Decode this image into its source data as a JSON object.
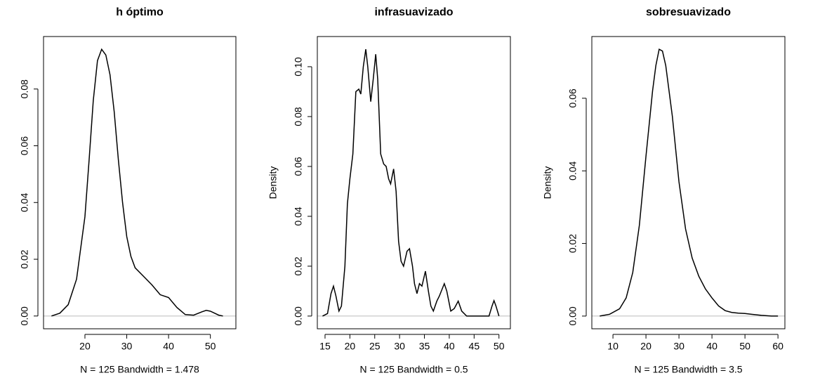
{
  "chart_data": [
    {
      "type": "line",
      "title": "h óptimo",
      "xlabel": "N = 125   Bandwidth = 1.478",
      "color": "#000000",
      "zero_line": true,
      "x": [
        12,
        14,
        16,
        18,
        20,
        21,
        22,
        23,
        24,
        25,
        26,
        27,
        28,
        29,
        30,
        31,
        32,
        34,
        36,
        38,
        40,
        42,
        44,
        46,
        48,
        49,
        50,
        52,
        53
      ],
      "values": [
        0,
        0.001,
        0.004,
        0.013,
        0.035,
        0.055,
        0.076,
        0.09,
        0.094,
        0.092,
        0.085,
        0.072,
        0.055,
        0.04,
        0.028,
        0.021,
        0.017,
        0.014,
        0.011,
        0.0075,
        0.0065,
        0.003,
        0.0005,
        0.0003,
        0.0015,
        0.002,
        0.0017,
        0.0003,
        0
      ],
      "xlim": [
        10.1,
        56.1
      ],
      "ylim": [
        -0.0045,
        0.0985
      ],
      "xticks": [
        20,
        30,
        40,
        50
      ],
      "yticks": [
        {
          "value": 0,
          "label": "0.00"
        },
        {
          "value": 0.02,
          "label": "0.02"
        },
        {
          "value": 0.04,
          "label": "0.04"
        },
        {
          "value": 0.06,
          "label": "0.06"
        },
        {
          "value": 0.08,
          "label": "0.08"
        }
      ]
    },
    {
      "type": "line",
      "title": "infrasuavizado",
      "xlabel": "N = 125   Bandwidth = 0.5",
      "ylabel": "Density",
      "color": "#000000",
      "zero_line": true,
      "x": [
        14.5,
        15.5,
        16.2,
        16.7,
        17.2,
        17.8,
        18.3,
        19,
        19.5,
        20,
        20.6,
        21.2,
        21.8,
        22.2,
        22.7,
        23.2,
        23.6,
        24.2,
        24.7,
        25.2,
        25.6,
        26.2,
        26.8,
        27.3,
        27.8,
        28.2,
        28.8,
        29.3,
        29.8,
        30.3,
        30.8,
        31.5,
        32,
        32.6,
        33,
        33.5,
        34,
        34.5,
        35.2,
        35.8,
        36.3,
        36.8,
        37.5,
        38,
        39,
        39.5,
        40.3,
        41,
        41.8,
        42.5,
        43.5,
        48,
        48.6,
        49,
        49.4,
        50
      ],
      "values": [
        0,
        0.001,
        0.009,
        0.012,
        0.008,
        0.002,
        0.004,
        0.02,
        0.045,
        0.055,
        0.065,
        0.09,
        0.091,
        0.089,
        0.1,
        0.107,
        0.1,
        0.086,
        0.095,
        0.105,
        0.095,
        0.065,
        0.061,
        0.06,
        0.055,
        0.053,
        0.059,
        0.05,
        0.03,
        0.022,
        0.02,
        0.026,
        0.027,
        0.02,
        0.013,
        0.009,
        0.013,
        0.012,
        0.018,
        0.01,
        0.004,
        0.002,
        0.006,
        0.008,
        0.013,
        0.01,
        0.002,
        0.003,
        0.006,
        0.002,
        0,
        0,
        0.004,
        0.0062,
        0.004,
        0
      ],
      "xlim": [
        13.45,
        52.3
      ],
      "ylim": [
        -0.0051,
        0.1121
      ],
      "xticks": [
        15,
        20,
        25,
        30,
        35,
        40,
        45,
        50
      ],
      "yticks": [
        {
          "value": 0,
          "label": "0.00"
        },
        {
          "value": 0.02,
          "label": "0.02"
        },
        {
          "value": 0.04,
          "label": "0.04"
        },
        {
          "value": 0.06,
          "label": "0.06"
        },
        {
          "value": 0.08,
          "label": "0.08"
        },
        {
          "value": 0.1,
          "label": "0.10"
        }
      ]
    },
    {
      "type": "line",
      "title": "sobresuavizado",
      "xlabel": "N = 125   Bandwidth = 3.5",
      "ylabel": "Density",
      "color": "#000000",
      "zero_line": true,
      "x": [
        6,
        9,
        12,
        14,
        16,
        18,
        20,
        22,
        23,
        24,
        25,
        26,
        28,
        30,
        32,
        34,
        36,
        38,
        40,
        42,
        44,
        46,
        48,
        50,
        52,
        55,
        58,
        60
      ],
      "values": [
        0,
        0.0005,
        0.002,
        0.005,
        0.012,
        0.025,
        0.044,
        0.062,
        0.069,
        0.0735,
        0.073,
        0.069,
        0.055,
        0.037,
        0.024,
        0.016,
        0.011,
        0.0075,
        0.005,
        0.0028,
        0.0015,
        0.001,
        0.0008,
        0.0007,
        0.0005,
        0.0002,
        0,
        0
      ],
      "xlim": [
        3.6,
        62.1
      ],
      "ylim": [
        -0.0035,
        0.077
      ],
      "xticks": [
        10,
        20,
        30,
        40,
        50,
        60
      ],
      "yticks": [
        {
          "value": 0,
          "label": "0.00"
        },
        {
          "value": 0.02,
          "label": "0.02"
        },
        {
          "value": 0.04,
          "label": "0.04"
        },
        {
          "value": 0.06,
          "label": "0.06"
        }
      ]
    }
  ]
}
